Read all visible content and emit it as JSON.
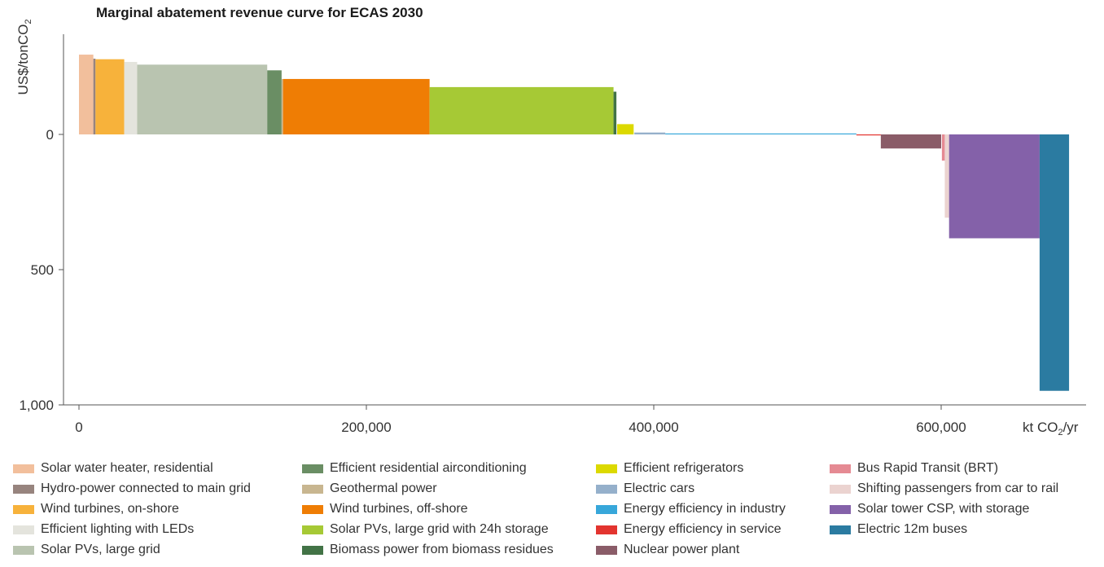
{
  "chart_data": {
    "type": "bar",
    "title": "Marginal abatement revenue curve for ECAS 2030",
    "ylabel": "US$/tonCO2",
    "xlabel": "kt CO2/yr",
    "xlim": [
      -3000,
      700000
    ],
    "ylim": [
      -300,
      1000
    ],
    "y_inverted": true,
    "x_ticks": [
      0,
      200000,
      400000,
      600000
    ],
    "x_tick_labels": [
      "0",
      "200,000",
      "400,000",
      "600,000"
    ],
    "y_ticks": [
      0,
      500,
      1000
    ],
    "y_tick_labels": [
      "0",
      "500",
      "1,000"
    ],
    "grid": false,
    "legend_position": "bottom",
    "series": [
      {
        "name": "Solar water heater, residential",
        "color": "#f2bf9c",
        "x_start": 0,
        "x_end": 10000,
        "value": -295
      },
      {
        "name": "Hydro-power connected to main grid",
        "color": "#97847e",
        "x_start": 10000,
        "x_end": 11500,
        "value": -280
      },
      {
        "name": "Wind turbines, on-shore",
        "color": "#f7b23b",
        "x_start": 11500,
        "x_end": 31500,
        "value": -278
      },
      {
        "name": "Efficient lighting with LEDs",
        "color": "#e4e4dd",
        "x_start": 31500,
        "x_end": 40500,
        "value": -268
      },
      {
        "name": "Solar PVs, large grid",
        "color": "#b9c4b0",
        "x_start": 40500,
        "x_end": 131000,
        "value": -258
      },
      {
        "name": "Efficient residential airconditioning",
        "color": "#6a8e64",
        "x_start": 131000,
        "x_end": 141000,
        "value": -237
      },
      {
        "name": "Geothermal power",
        "color": "#c8b690",
        "x_start": 141000,
        "x_end": 142000,
        "value": -205
      },
      {
        "name": "Wind turbines, off-shore",
        "color": "#ef7d04",
        "x_start": 142000,
        "x_end": 244000,
        "value": -205
      },
      {
        "name": "Solar PVs, large grid with 24h storage",
        "color": "#a6c935",
        "x_start": 244000,
        "x_end": 372000,
        "value": -175
      },
      {
        "name": "Biomass power from biomass residues",
        "color": "#427346",
        "x_start": 372000,
        "x_end": 374000,
        "value": -158
      },
      {
        "name": "Efficient refrigerators",
        "color": "#dcd900",
        "x_start": 374500,
        "x_end": 386000,
        "value": -38
      },
      {
        "name": "Electric cars",
        "color": "#95b0cb",
        "x_start": 386500,
        "x_end": 408000,
        "value": -7
      },
      {
        "name": "Energy efficiency in industry",
        "color": "#37a7da",
        "x_start": 408000,
        "x_end": 541000,
        "value": -2
      },
      {
        "name": "Energy efficiency in service",
        "color": "#e3342f",
        "x_start": 541000,
        "x_end": 558000,
        "value": 1
      },
      {
        "name": "Nuclear power plant",
        "color": "#8a5c68",
        "x_start": 558000,
        "x_end": 600000,
        "value": 52
      },
      {
        "name": "Bus Rapid Transit (BRT)",
        "color": "#e58a93",
        "x_start": 600500,
        "x_end": 602500,
        "value": 97
      },
      {
        "name": "Shifting passengers from car to rail",
        "color": "#ebd3d0",
        "x_start": 602500,
        "x_end": 605500,
        "value": 308
      },
      {
        "name": "Solar tower CSP, with storage",
        "color": "#8461a9",
        "x_start": 605500,
        "x_end": 668500,
        "value": 384
      },
      {
        "name": "Electric 12m buses",
        "color": "#2b7ba1",
        "x_start": 668500,
        "x_end": 689000,
        "value": 948
      }
    ]
  }
}
